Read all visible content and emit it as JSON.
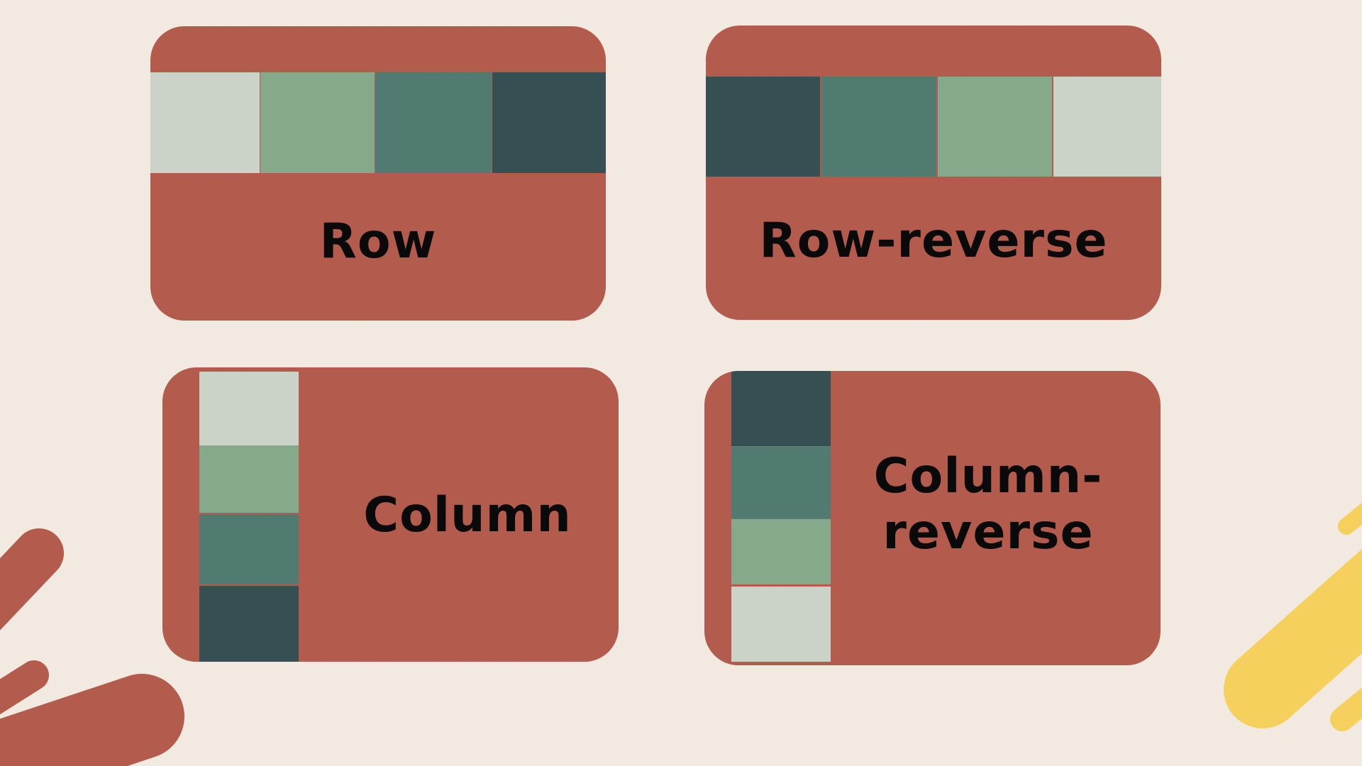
{
  "colors": {
    "background": "#f2e9e1",
    "card": "#b35b4d",
    "box_lightest": "#cbd3c8",
    "box_light": "#86a98c",
    "box_medium": "#517a70",
    "box_dark": "#364f53",
    "decoration_red": "#b35b4d",
    "decoration_yellow": "#f6d05c"
  },
  "cards": {
    "row": {
      "label": "Row"
    },
    "row_reverse": {
      "label": "Row-reverse"
    },
    "column": {
      "label": "Column"
    },
    "column_reverse": {
      "label_line1": "Column-",
      "label_line2": "reverse"
    }
  }
}
